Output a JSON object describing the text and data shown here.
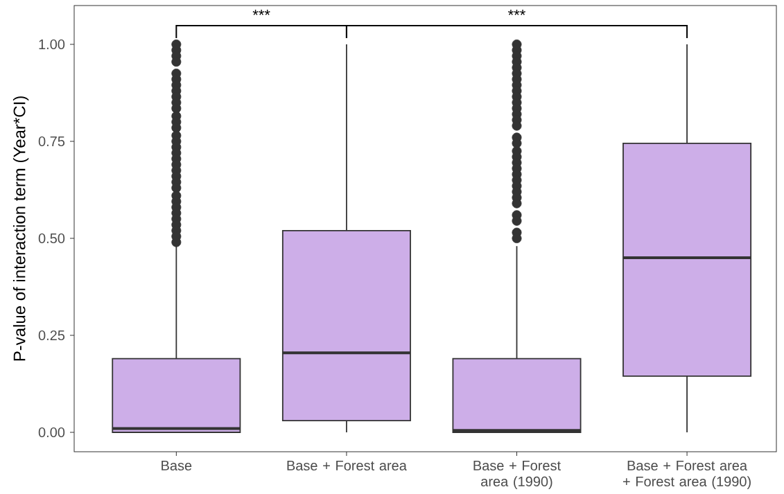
{
  "chart_data": {
    "type": "box",
    "ylabel": "P-value of interaction term (Year*CI)",
    "categories": [
      "Base",
      "Base + Forest area",
      "Base + Forest area (1990)",
      "Base + Forest area + Forest area (1990)"
    ],
    "color": "#cdaee8",
    "boxes": [
      {
        "low": 0,
        "q1": 0,
        "median": 0.01,
        "q3": 0.19,
        "high": 0.48,
        "outliers": [
          1.0,
          0.985,
          0.97,
          0.955,
          0.925,
          0.91,
          0.895,
          0.88,
          0.865,
          0.85,
          0.835,
          0.815,
          0.8,
          0.785,
          0.765,
          0.75,
          0.735,
          0.72,
          0.705,
          0.69,
          0.675,
          0.66,
          0.645,
          0.63,
          0.61,
          0.595,
          0.58,
          0.565,
          0.55,
          0.535,
          0.52,
          0.505,
          0.49
        ]
      },
      {
        "low": 0,
        "q1": 0.03,
        "median": 0.205,
        "q3": 0.52,
        "high": 1.0
      },
      {
        "low": 0,
        "q1": 0,
        "median": 0.005,
        "q3": 0.19,
        "high": 0.48,
        "outliers": [
          1.0,
          0.985,
          0.97,
          0.955,
          0.94,
          0.925,
          0.91,
          0.895,
          0.88,
          0.865,
          0.85,
          0.835,
          0.82,
          0.805,
          0.79,
          0.76,
          0.745,
          0.725,
          0.71,
          0.695,
          0.68,
          0.665,
          0.65,
          0.635,
          0.62,
          0.605,
          0.59,
          0.56,
          0.545,
          0.515,
          0.5
        ]
      },
      {
        "low": 0,
        "q1": 0.145,
        "median": 0.45,
        "q3": 0.745,
        "high": 1.0
      }
    ],
    "ylim": [
      -0.05,
      1.1
    ],
    "yticks": [
      {
        "value": 0,
        "label": "0.00"
      },
      {
        "value": 0.25,
        "label": "0.25"
      },
      {
        "value": 0.5,
        "label": "0.50"
      },
      {
        "value": 0.75,
        "label": "0.75"
      },
      {
        "value": 1.0,
        "label": "1.00"
      }
    ],
    "annotations": [
      "***",
      "***"
    ]
  }
}
